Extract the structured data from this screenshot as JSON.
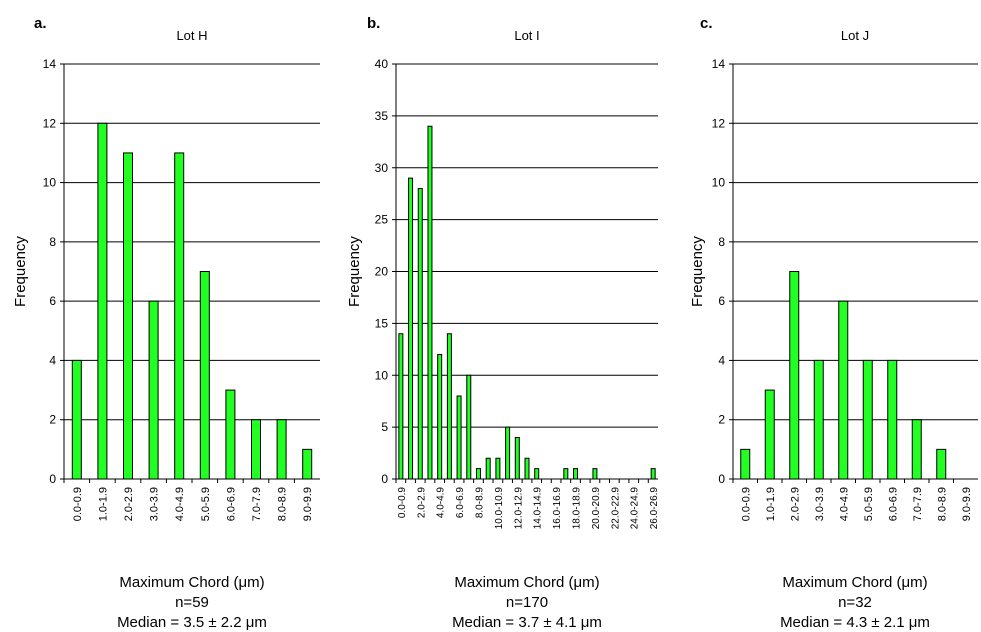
{
  "chart_data": [
    {
      "type": "bar",
      "panel_label": "a.",
      "title": "Lot H",
      "ylabel": "Frequency",
      "xlabel": "Maximum Chord (μm)",
      "n_text": "n=59",
      "median_text": "Median = 3.5 ± 2.2 μm",
      "ylim": [
        0,
        14
      ],
      "yticks": [
        0,
        2,
        4,
        6,
        8,
        10,
        12,
        14
      ],
      "grid": true,
      "bar_color": "#22ff22",
      "categories": [
        "0.0-0.9",
        "1.0-1.9",
        "2.0-2.9",
        "3.0-3.9",
        "4.0-4.9",
        "5.0-5.9",
        "6.0-6.9",
        "7.0-7.9",
        "8.0-8.9",
        "9.0-9.9"
      ],
      "values": [
        4,
        12,
        11,
        6,
        11,
        7,
        3,
        2,
        2,
        1
      ]
    },
    {
      "type": "bar",
      "panel_label": "b.",
      "title": "Lot I",
      "ylabel": "Frequency",
      "xlabel": "Maximum Chord (μm)",
      "n_text": "n=170",
      "median_text": "Median = 3.7 ± 4.1 μm",
      "ylim": [
        0,
        40
      ],
      "yticks": [
        0,
        5,
        10,
        15,
        20,
        25,
        30,
        35,
        40
      ],
      "grid": true,
      "bar_color": "#22ff22",
      "categories": [
        "0.0-0.9",
        "1.0-1.9",
        "2.0-2.9",
        "3.0-3.9",
        "4.0-4.9",
        "5.0-5.9",
        "6.0-6.9",
        "7.0-7.9",
        "8.0-8.9",
        "9.0-9.9",
        "10.0-10.9",
        "11.0-11.9",
        "12.0-12.9",
        "13.0-13.9",
        "14.0-14.9",
        "15.0-15.9",
        "16.0-16.9",
        "17.0-17.9",
        "18.0-18.9",
        "19.0-19.9",
        "20.0-20.9",
        "21.0-21.9",
        "22.0-22.9",
        "23.0-23.9",
        "24.0-24.9",
        "25.0-25.9",
        "26.0-26.9"
      ],
      "tick_labels_shown": [
        "0.0-0.9",
        "2.0-2.9",
        "4.0-4.9",
        "6.0-6.9",
        "8.0-8.9",
        "10.0-10.9",
        "12.0-12.9",
        "14.0-14.9",
        "16.0-16.9",
        "18.0-18.9",
        "20.0-20.9",
        "22.0-22.9",
        "24.0-24.9",
        "26.0-26.9"
      ],
      "values": [
        14,
        29,
        28,
        34,
        12,
        14,
        8,
        10,
        1,
        2,
        2,
        5,
        4,
        2,
        1,
        0,
        0,
        1,
        1,
        0,
        1,
        0,
        0,
        0,
        0,
        0,
        1
      ]
    },
    {
      "type": "bar",
      "panel_label": "c.",
      "title": "Lot J",
      "ylabel": "Frequency",
      "xlabel": "Maximum Chord (μm)",
      "n_text": "n=32",
      "median_text": "Median = 4.3 ± 2.1 μm",
      "ylim": [
        0,
        14
      ],
      "yticks": [
        0,
        2,
        4,
        6,
        8,
        10,
        12,
        14
      ],
      "grid": true,
      "bar_color": "#22ff22",
      "categories": [
        "0.0-0.9",
        "1.0-1.9",
        "2.0-2.9",
        "3.0-3.9",
        "4.0-4.9",
        "5.0-5.9",
        "6.0-6.9",
        "7.0-7.9",
        "8.0-8.9",
        "9.0-9.9"
      ],
      "values": [
        1,
        3,
        7,
        4,
        6,
        4,
        4,
        2,
        1,
        0
      ]
    }
  ]
}
